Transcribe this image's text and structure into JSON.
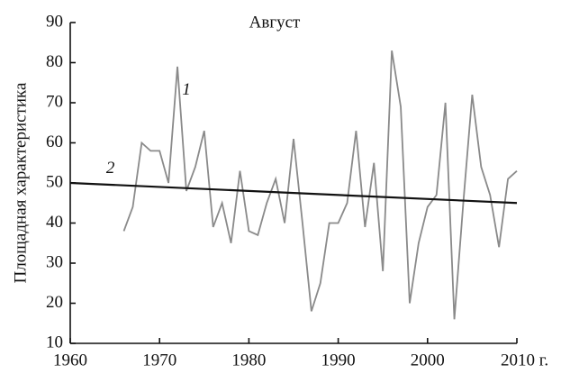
{
  "chart_data": {
    "type": "line",
    "title": "Август",
    "y_label": "Площадная характеристика",
    "xlim": [
      1960,
      2010
    ],
    "ylim": [
      10,
      90
    ],
    "xticks": [
      1960,
      1970,
      1980,
      1990,
      2000,
      {
        "value": 2010,
        "label": "2010 г."
      }
    ],
    "yticks": [
      10,
      20,
      30,
      40,
      50,
      60,
      70,
      80,
      90
    ],
    "series": [
      {
        "name": "1",
        "color": "#8a8a8a",
        "x": [
          1966,
          1967,
          1968,
          1969,
          1970,
          1971,
          1972,
          1973,
          1974,
          1975,
          1976,
          1977,
          1978,
          1979,
          1980,
          1981,
          1982,
          1983,
          1984,
          1985,
          1986,
          1987,
          1988,
          1989,
          1990,
          1991,
          1992,
          1993,
          1994,
          1995,
          1996,
          1997,
          1998,
          1999,
          2000,
          2001,
          2002,
          2003,
          2004,
          2005,
          2006,
          2007,
          2008,
          2009,
          2010
        ],
        "values": [
          38,
          44,
          60,
          58,
          58,
          50,
          79,
          48,
          54,
          63,
          39,
          45,
          35,
          53,
          38,
          37,
          45,
          51,
          40,
          61,
          40,
          18,
          25,
          40,
          40,
          45,
          63,
          39,
          55,
          28,
          83,
          69,
          20,
          35,
          44,
          47,
          70,
          16,
          45,
          72,
          54,
          47,
          34,
          51,
          53
        ]
      },
      {
        "name": "2",
        "color": "#111111",
        "x": [
          1960,
          2010
        ],
        "values": [
          50,
          45
        ]
      }
    ]
  }
}
